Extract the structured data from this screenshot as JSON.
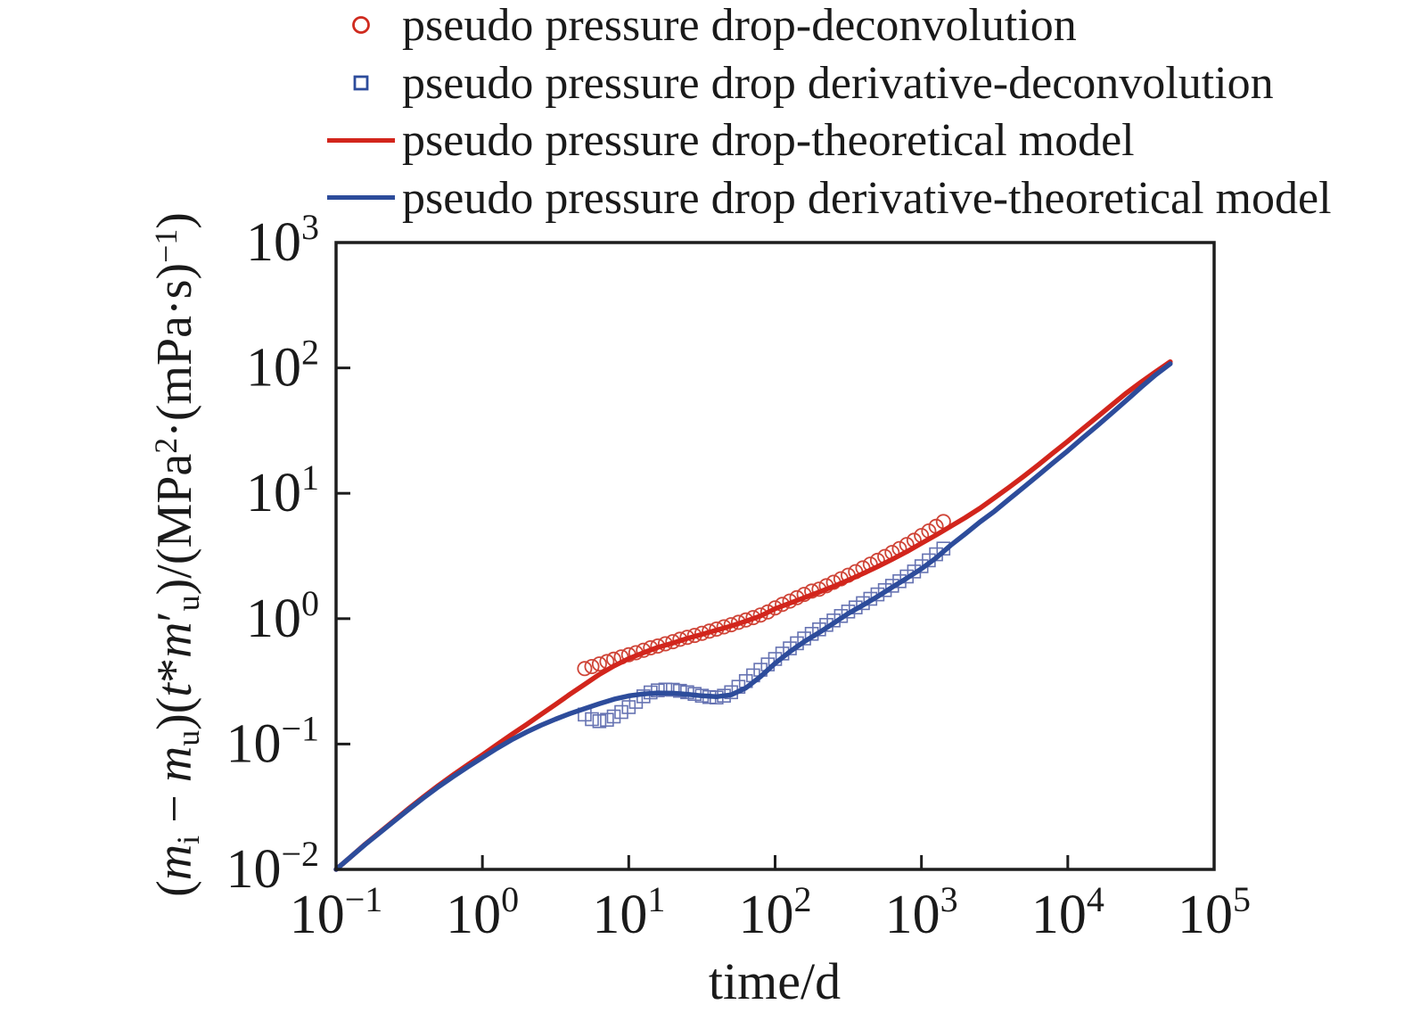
{
  "figure": {
    "background": "#ffffff",
    "text_color": "#1a1a1a",
    "axis_color": "#1d1d1d"
  },
  "legend": {
    "items": [
      {
        "label": "pseudo pressure drop-deconvolution",
        "marker": "circle",
        "color": "#cf2a1e"
      },
      {
        "label": "pseudo pressure drop derivative-deconvolution",
        "marker": "square",
        "color": "#2d4c9b"
      },
      {
        "label": "pseudo pressure drop-theoretical model",
        "marker": "line",
        "color": "#d2251c"
      },
      {
        "label": "pseudo pressure drop derivative-theoretical model",
        "marker": "line",
        "color": "#2d4c9b"
      }
    ]
  },
  "chart_data": {
    "type": "line",
    "x_scale": "log",
    "y_scale": "log",
    "grid": false,
    "legend_position": "top-left-outside",
    "xlabel": "time/d",
    "ylabel": "(m_i − m_u)(t*m_u′)/(MPa^2·(mPa·s)^−1)",
    "ylabel_segments": [
      {
        "t": "(",
        "s": "n"
      },
      {
        "t": "m",
        "s": "i"
      },
      {
        "t": "i",
        "s": "sub"
      },
      {
        "t": " − ",
        "s": "n"
      },
      {
        "t": "m",
        "s": "i"
      },
      {
        "t": "u",
        "s": "sub"
      },
      {
        "t": ")(",
        "s": "n"
      },
      {
        "t": "t",
        "s": "i"
      },
      {
        "t": "*",
        "s": "n"
      },
      {
        "t": "m",
        "s": "i"
      },
      {
        "t": "′",
        "s": "n"
      },
      {
        "t": "u",
        "s": "sub"
      },
      {
        "t": ")/(MPa",
        "s": "n"
      },
      {
        "t": "2",
        "s": "sup"
      },
      {
        "t": "·(mPa·s)",
        "s": "n"
      },
      {
        "t": "−1",
        "s": "sup"
      },
      {
        "t": ")",
        "s": "n"
      }
    ],
    "xlim": [
      0.1,
      100000
    ],
    "ylim": [
      0.01,
      1000
    ],
    "x_tick_exponents": [
      "−1",
      "0",
      "1",
      "2",
      "3",
      "4",
      "5"
    ],
    "y_tick_exponents": [
      "−2",
      "−1",
      "0",
      "1",
      "2",
      "3"
    ],
    "series": [
      {
        "name": "pseudo pressure drop-deconvolution",
        "type": "scatter",
        "marker": "circle",
        "color": "#cf4437",
        "points": [
          [
            5.0,
            0.4
          ],
          [
            5.6,
            0.415
          ],
          [
            6.3,
            0.435
          ],
          [
            7.1,
            0.455
          ],
          [
            7.9,
            0.475
          ],
          [
            8.9,
            0.495
          ],
          [
            10,
            0.515
          ],
          [
            11.2,
            0.535
          ],
          [
            12.6,
            0.56
          ],
          [
            14.1,
            0.585
          ],
          [
            15.8,
            0.605
          ],
          [
            17.8,
            0.63
          ],
          [
            20,
            0.655
          ],
          [
            22.4,
            0.685
          ],
          [
            25.1,
            0.71
          ],
          [
            28.2,
            0.735
          ],
          [
            31.6,
            0.765
          ],
          [
            35.5,
            0.795
          ],
          [
            39.8,
            0.825
          ],
          [
            44.7,
            0.86
          ],
          [
            50.1,
            0.895
          ],
          [
            56.2,
            0.935
          ],
          [
            63.1,
            0.975
          ],
          [
            70.8,
            1.02
          ],
          [
            79.4,
            1.07
          ],
          [
            89.1,
            1.13
          ],
          [
            100,
            1.22
          ],
          [
            112,
            1.3
          ],
          [
            126,
            1.38
          ],
          [
            141,
            1.47
          ],
          [
            158,
            1.56
          ],
          [
            178,
            1.66
          ],
          [
            200,
            1.72
          ],
          [
            224,
            1.83
          ],
          [
            251,
            1.95
          ],
          [
            282,
            2.08
          ],
          [
            316,
            2.22
          ],
          [
            355,
            2.37
          ],
          [
            398,
            2.54
          ],
          [
            447,
            2.72
          ],
          [
            501,
            2.92
          ],
          [
            562,
            3.13
          ],
          [
            631,
            3.37
          ],
          [
            708,
            3.62
          ],
          [
            794,
            3.9
          ],
          [
            891,
            4.22
          ],
          [
            1000,
            4.6
          ],
          [
            1122,
            5.0
          ],
          [
            1259,
            5.45
          ],
          [
            1413,
            5.95
          ]
        ]
      },
      {
        "name": "pseudo pressure drop derivative-deconvolution",
        "type": "scatter",
        "marker": "square",
        "color": "#6673b2",
        "points": [
          [
            5.0,
            0.172
          ],
          [
            5.6,
            0.158
          ],
          [
            6.3,
            0.152
          ],
          [
            7.1,
            0.156
          ],
          [
            7.9,
            0.166
          ],
          [
            8.9,
            0.18
          ],
          [
            10,
            0.197
          ],
          [
            11.2,
            0.217
          ],
          [
            12.6,
            0.24
          ],
          [
            14.1,
            0.258
          ],
          [
            15.8,
            0.268
          ],
          [
            17.8,
            0.272
          ],
          [
            20,
            0.271
          ],
          [
            22.4,
            0.266
          ],
          [
            25.1,
            0.259
          ],
          [
            28.2,
            0.251
          ],
          [
            31.6,
            0.243
          ],
          [
            35.5,
            0.237
          ],
          [
            39.8,
            0.235
          ],
          [
            44.7,
            0.243
          ],
          [
            50.1,
            0.259
          ],
          [
            56.2,
            0.286
          ],
          [
            63.1,
            0.318
          ],
          [
            70.8,
            0.353
          ],
          [
            79.4,
            0.391
          ],
          [
            89.1,
            0.432
          ],
          [
            100,
            0.477
          ],
          [
            112,
            0.527
          ],
          [
            126,
            0.58
          ],
          [
            141,
            0.636
          ],
          [
            158,
            0.695
          ],
          [
            178,
            0.757
          ],
          [
            200,
            0.822
          ],
          [
            224,
            0.892
          ],
          [
            251,
            0.968
          ],
          [
            282,
            1.05
          ],
          [
            316,
            1.14
          ],
          [
            355,
            1.23
          ],
          [
            398,
            1.33
          ],
          [
            447,
            1.44
          ],
          [
            501,
            1.56
          ],
          [
            562,
            1.69
          ],
          [
            631,
            1.83
          ],
          [
            708,
            1.99
          ],
          [
            794,
            2.17
          ],
          [
            891,
            2.38
          ],
          [
            1000,
            2.62
          ],
          [
            1122,
            2.92
          ],
          [
            1259,
            3.26
          ],
          [
            1413,
            3.62
          ]
        ]
      },
      {
        "name": "pseudo pressure drop-theoretical model",
        "type": "line",
        "color": "#d2251c",
        "points": [
          [
            0.1,
            0.01
          ],
          [
            0.126,
            0.0126
          ],
          [
            0.158,
            0.0159
          ],
          [
            0.2,
            0.0199
          ],
          [
            0.251,
            0.0247
          ],
          [
            0.316,
            0.0308
          ],
          [
            0.398,
            0.0381
          ],
          [
            0.501,
            0.0468
          ],
          [
            0.631,
            0.0567
          ],
          [
            0.794,
            0.0684
          ],
          [
            1.0,
            0.082
          ],
          [
            1.26,
            0.099
          ],
          [
            1.58,
            0.119
          ],
          [
            2.0,
            0.143
          ],
          [
            2.51,
            0.172
          ],
          [
            3.16,
            0.207
          ],
          [
            3.98,
            0.25
          ],
          [
            5.01,
            0.3
          ],
          [
            6.31,
            0.36
          ],
          [
            7.94,
            0.42
          ],
          [
            10,
            0.48
          ],
          [
            12.6,
            0.535
          ],
          [
            15.8,
            0.59
          ],
          [
            20,
            0.64
          ],
          [
            25.1,
            0.695
          ],
          [
            31.6,
            0.75
          ],
          [
            39.8,
            0.81
          ],
          [
            50.1,
            0.875
          ],
          [
            63.1,
            0.955
          ],
          [
            79.4,
            1.05
          ],
          [
            100,
            1.2
          ],
          [
            126,
            1.33
          ],
          [
            158,
            1.47
          ],
          [
            200,
            1.63
          ],
          [
            251,
            1.81
          ],
          [
            316,
            2.03
          ],
          [
            398,
            2.29
          ],
          [
            501,
            2.6
          ],
          [
            631,
            2.97
          ],
          [
            794,
            3.42
          ],
          [
            1000,
            4.0
          ],
          [
            1259,
            4.65
          ],
          [
            1585,
            5.45
          ],
          [
            1995,
            6.4
          ],
          [
            2512,
            7.6
          ],
          [
            3162,
            9.2
          ],
          [
            3981,
            11.2
          ],
          [
            5012,
            13.7
          ],
          [
            6310,
            16.9
          ],
          [
            7943,
            21
          ],
          [
            10000,
            26
          ],
          [
            12589,
            32.5
          ],
          [
            15849,
            40.5
          ],
          [
            19953,
            50.5
          ],
          [
            25119,
            63
          ],
          [
            31623,
            77
          ],
          [
            39811,
            93
          ],
          [
            50119,
            112
          ]
        ]
      },
      {
        "name": "pseudo pressure drop derivative-theoretical model",
        "type": "line",
        "color": "#2d4c9b",
        "points": [
          [
            0.1,
            0.01
          ],
          [
            0.126,
            0.0126
          ],
          [
            0.158,
            0.0158
          ],
          [
            0.2,
            0.0197
          ],
          [
            0.251,
            0.0244
          ],
          [
            0.316,
            0.0303
          ],
          [
            0.398,
            0.0374
          ],
          [
            0.501,
            0.0456
          ],
          [
            0.631,
            0.0549
          ],
          [
            0.794,
            0.0657
          ],
          [
            1.0,
            0.078
          ],
          [
            1.26,
            0.0925
          ],
          [
            1.58,
            0.108
          ],
          [
            2.0,
            0.1245
          ],
          [
            2.51,
            0.141
          ],
          [
            3.16,
            0.158
          ],
          [
            3.98,
            0.175
          ],
          [
            5.01,
            0.192
          ],
          [
            6.31,
            0.21
          ],
          [
            7.94,
            0.228
          ],
          [
            10,
            0.242
          ],
          [
            12.6,
            0.251
          ],
          [
            15.8,
            0.2555
          ],
          [
            20,
            0.2545
          ],
          [
            25.1,
            0.2495
          ],
          [
            31.6,
            0.2425
          ],
          [
            39.8,
            0.2385
          ],
          [
            50.1,
            0.247
          ],
          [
            63.1,
            0.28
          ],
          [
            79.4,
            0.345
          ],
          [
            100,
            0.44
          ],
          [
            126,
            0.545
          ],
          [
            158,
            0.655
          ],
          [
            200,
            0.775
          ],
          [
            251,
            0.92
          ],
          [
            316,
            1.1
          ],
          [
            398,
            1.28
          ],
          [
            501,
            1.5
          ],
          [
            631,
            1.78
          ],
          [
            794,
            2.1
          ],
          [
            1000,
            2.5
          ],
          [
            1259,
            3.05
          ],
          [
            1585,
            3.85
          ],
          [
            1995,
            4.75
          ],
          [
            2512,
            5.9
          ],
          [
            3162,
            7.2
          ],
          [
            3981,
            9.0
          ],
          [
            5012,
            11.2
          ],
          [
            6310,
            14.0
          ],
          [
            7943,
            17.5
          ],
          [
            10000,
            21.8
          ],
          [
            12589,
            27.5
          ],
          [
            15849,
            34.5
          ],
          [
            19953,
            43.5
          ],
          [
            25119,
            55
          ],
          [
            31623,
            70
          ],
          [
            39811,
            88
          ],
          [
            50119,
            108
          ]
        ]
      }
    ]
  }
}
